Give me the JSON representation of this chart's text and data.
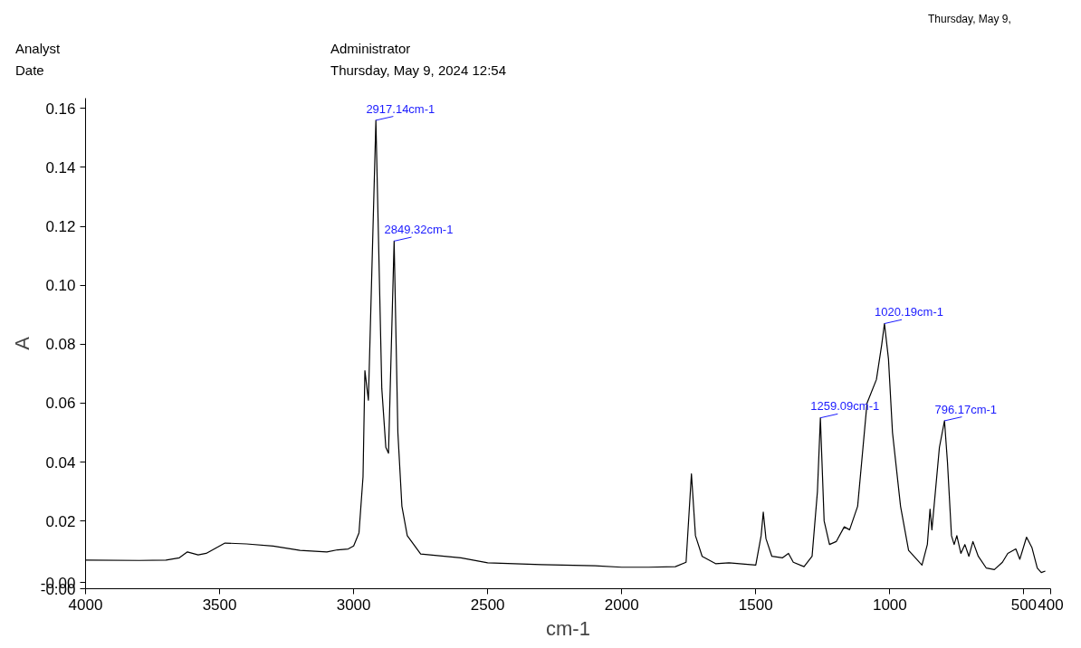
{
  "chart_data": {
    "type": "line",
    "xlabel": "cm-1",
    "ylabel": "A",
    "xlim": [
      4000,
      400
    ],
    "ylim": [
      -0.003,
      0.1635
    ],
    "xticks": [
      4000,
      3500,
      3000,
      2500,
      2000,
      1500,
      1000,
      500,
      400
    ],
    "yticks": [
      {
        "value": -0.003,
        "label": "-0.00"
      },
      {
        "value": -0.001,
        "label": "-0.00"
      },
      {
        "value": 0.02,
        "label": "0.02"
      },
      {
        "value": 0.04,
        "label": "0.04"
      },
      {
        "value": 0.06,
        "label": "0.06"
      },
      {
        "value": 0.08,
        "label": "0.08"
      },
      {
        "value": 0.1,
        "label": "0.10"
      },
      {
        "value": 0.12,
        "label": "0.12"
      },
      {
        "value": 0.14,
        "label": "0.14"
      },
      {
        "value": 0.16,
        "label": "0.16"
      }
    ],
    "grid": false,
    "marker": "none",
    "line_style": "solid",
    "series": [
      {
        "color": "#000000",
        "x": [
          4000,
          3800,
          3700,
          3650,
          3620,
          3580,
          3550,
          3480,
          3400,
          3300,
          3200,
          3100,
          3060,
          3020,
          3000,
          2980,
          2965,
          2958,
          2945,
          2917,
          2895,
          2880,
          2870,
          2849,
          2835,
          2820,
          2800,
          2750,
          2600,
          2500,
          2300,
          2100,
          2000,
          1900,
          1800,
          1760,
          1740,
          1725,
          1700,
          1650,
          1600,
          1560,
          1500,
          1480,
          1472,
          1462,
          1440,
          1400,
          1378,
          1360,
          1320,
          1290,
          1270,
          1259,
          1245,
          1225,
          1200,
          1170,
          1150,
          1120,
          1100,
          1085,
          1050,
          1030,
          1020,
          1005,
          990,
          960,
          930,
          900,
          880,
          860,
          850,
          843,
          830,
          815,
          796,
          785,
          770,
          760,
          750,
          735,
          720,
          705,
          690,
          670,
          640,
          610,
          580,
          560,
          530,
          515,
          490,
          470,
          450,
          435,
          420
        ],
        "values": [
          0.0067,
          0.0066,
          0.0067,
          0.0075,
          0.0095,
          0.0085,
          0.009,
          0.0125,
          0.0122,
          0.0115,
          0.01,
          0.0095,
          0.0102,
          0.0105,
          0.0115,
          0.016,
          0.035,
          0.071,
          0.061,
          0.156,
          0.065,
          0.045,
          0.043,
          0.115,
          0.05,
          0.025,
          0.015,
          0.0088,
          0.0075,
          0.0058,
          0.0052,
          0.0048,
          0.0043,
          0.0043,
          0.0045,
          0.006,
          0.036,
          0.015,
          0.008,
          0.0055,
          0.0058,
          0.0055,
          0.005,
          0.015,
          0.023,
          0.014,
          0.008,
          0.0075,
          0.009,
          0.006,
          0.0045,
          0.008,
          0.03,
          0.055,
          0.02,
          0.012,
          0.013,
          0.018,
          0.017,
          0.025,
          0.045,
          0.06,
          0.068,
          0.08,
          0.087,
          0.075,
          0.05,
          0.025,
          0.01,
          0.007,
          0.005,
          0.012,
          0.024,
          0.017,
          0.03,
          0.045,
          0.054,
          0.04,
          0.015,
          0.012,
          0.015,
          0.009,
          0.012,
          0.008,
          0.013,
          0.008,
          0.004,
          0.0035,
          0.006,
          0.009,
          0.0105,
          0.007,
          0.0145,
          0.011,
          0.004,
          0.0025,
          0.003
        ]
      }
    ],
    "annotations": [
      "Analyst",
      "Date",
      "Administrator",
      "Thursday, May 9, 2024 12:54",
      "Thursday, May 9,",
      {
        "text": "2917.14cm-1",
        "x": 2917,
        "y": 0.156
      },
      {
        "text": "2849.32cm-1",
        "x": 2849,
        "y": 0.115
      },
      {
        "text": "1259.09cm-1",
        "x": 1259,
        "y": 0.055
      },
      {
        "text": "1020.19cm-1",
        "x": 1020,
        "y": 0.087
      },
      {
        "text": "796.17cm-1",
        "x": 796,
        "y": 0.054
      }
    ]
  }
}
